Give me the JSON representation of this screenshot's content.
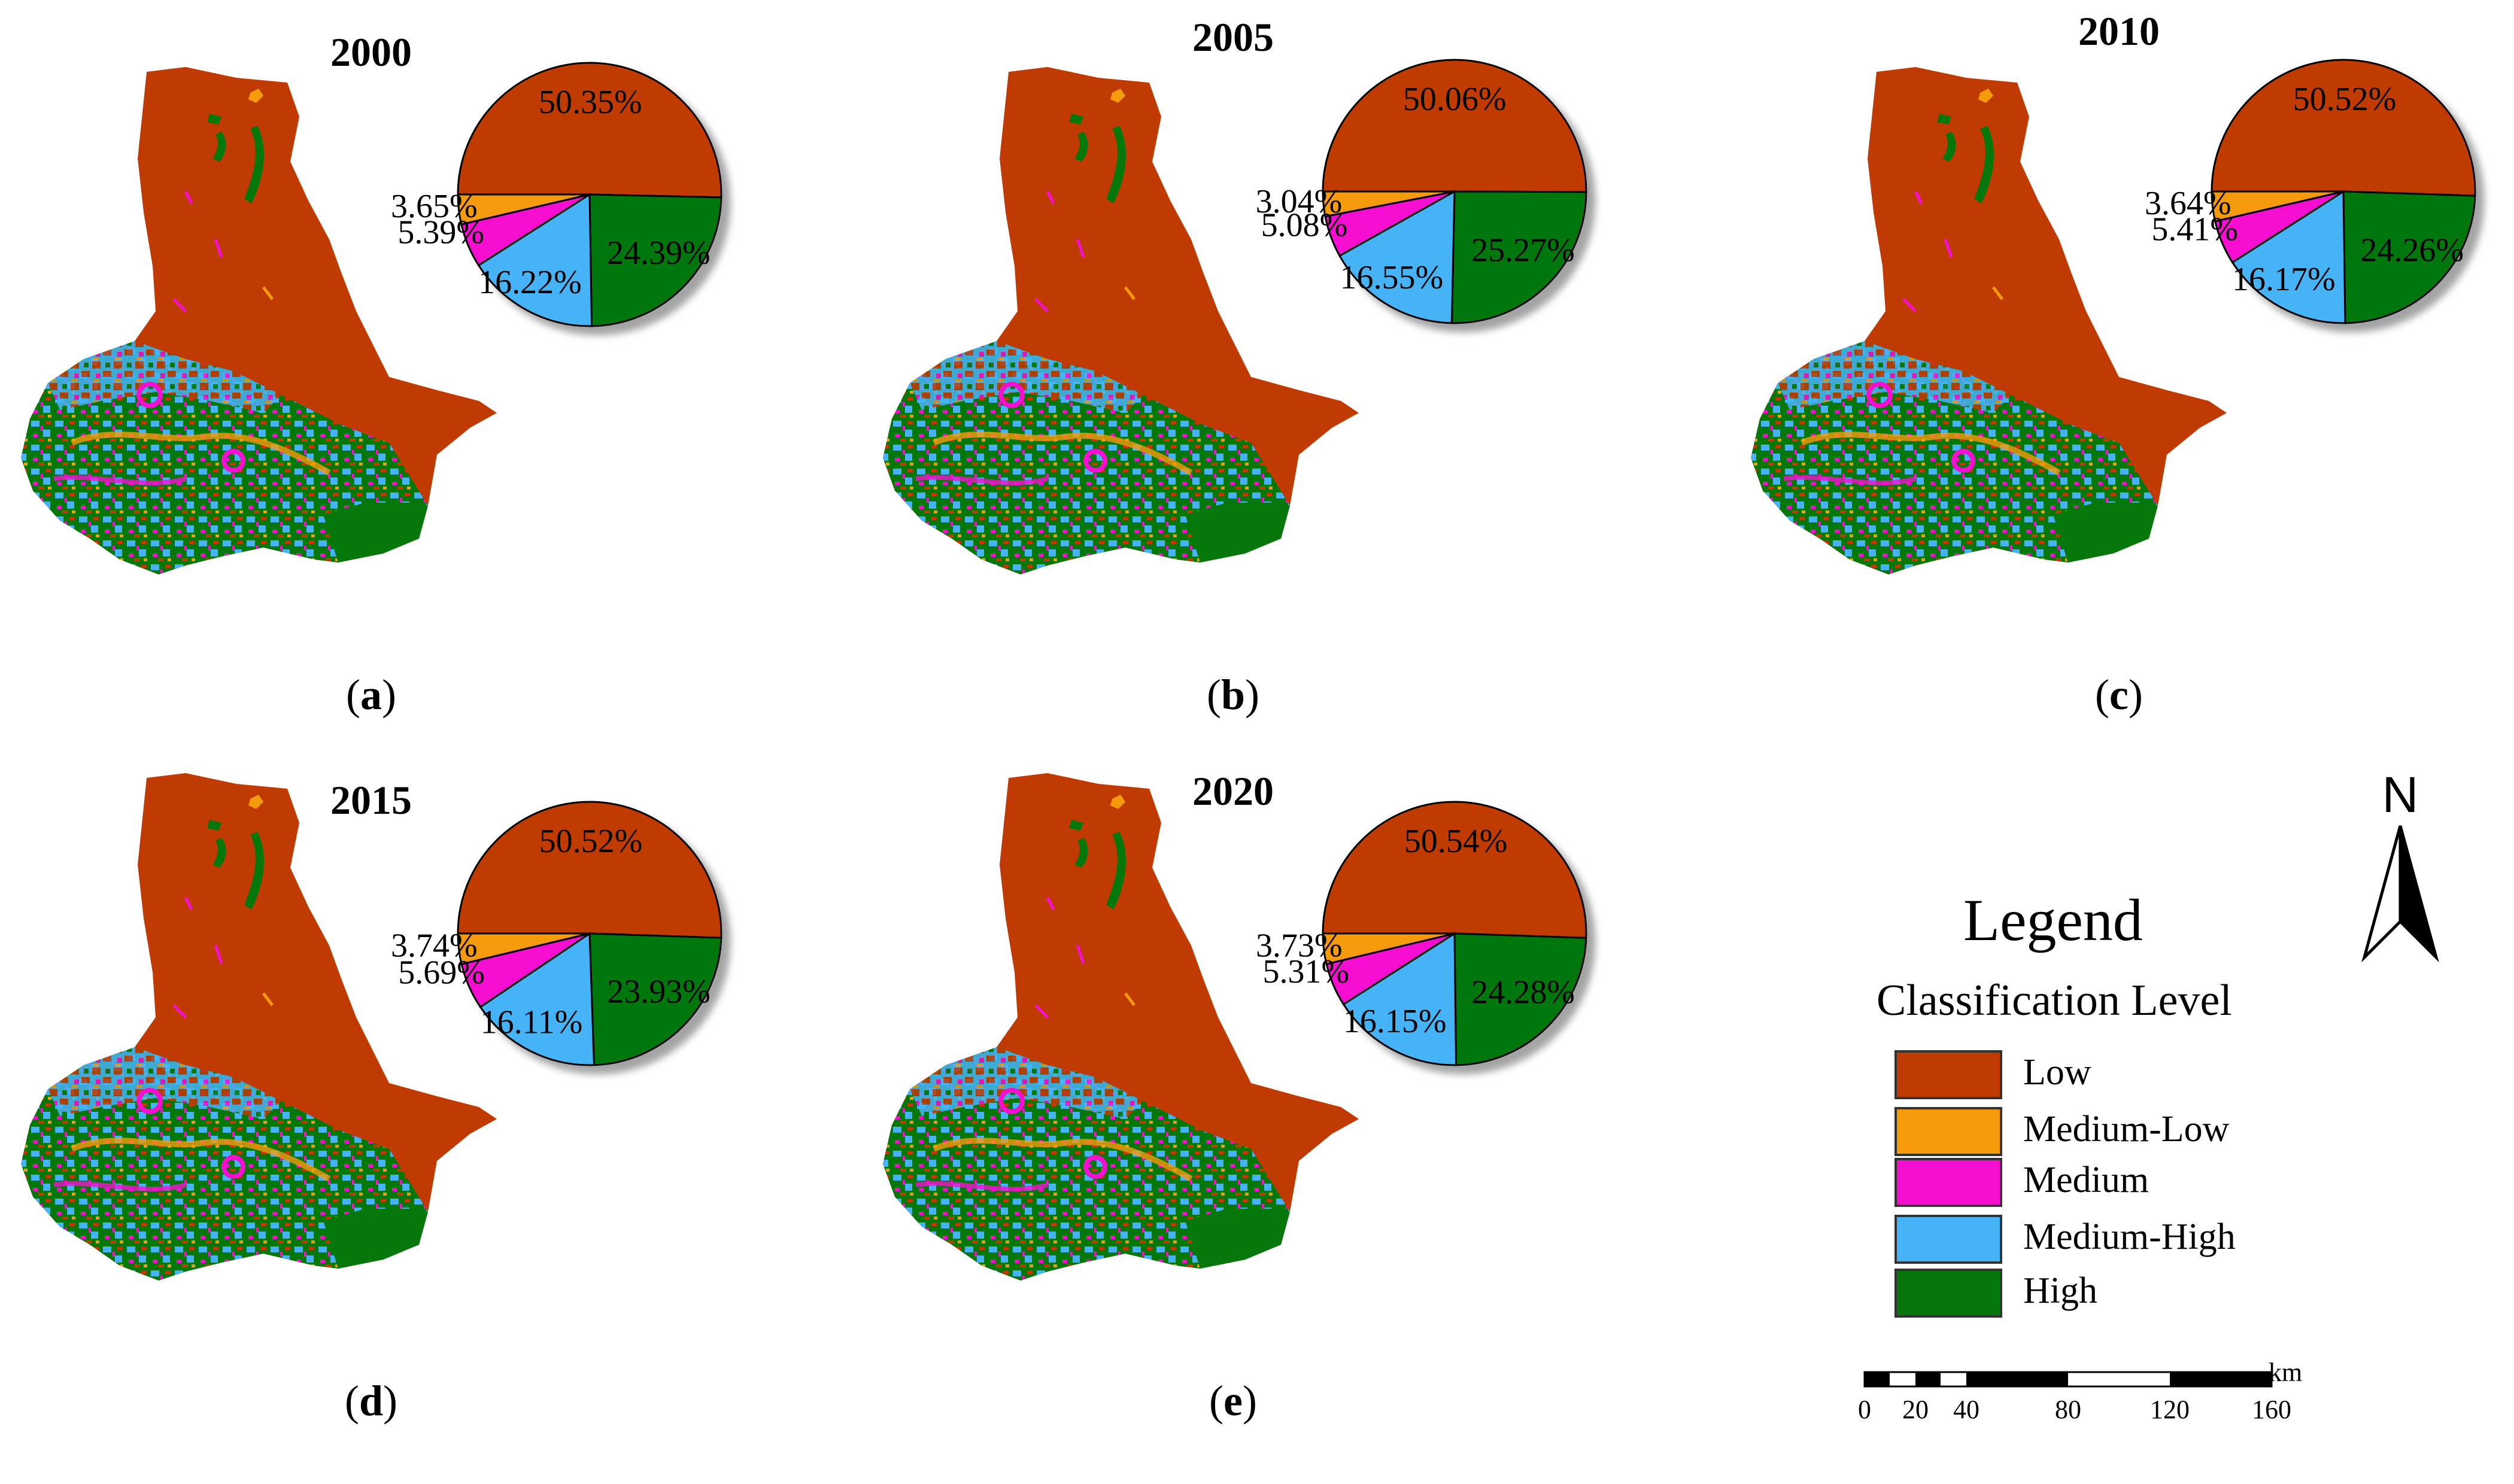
{
  "colors": {
    "low": "#c03a03",
    "medium_low": "#f59a0b",
    "medium": "#f510d0",
    "medium_high": "#45b3f5",
    "high": "#06770b"
  },
  "panels": [
    {
      "label_letter": "a",
      "year": "2000",
      "pie": [
        {
          "level": "Low",
          "value": 50.35,
          "label": "50.35%"
        },
        {
          "level": "High",
          "value": 24.39,
          "label": "24.39%"
        },
        {
          "level": "Medium-High",
          "value": 16.22,
          "label": "16.22%"
        },
        {
          "level": "Medium",
          "value": 5.39,
          "label": "5.39%"
        },
        {
          "level": "Medium-Low",
          "value": 3.65,
          "label": "3.65%"
        }
      ]
    },
    {
      "label_letter": "b",
      "year": "2005",
      "pie": [
        {
          "level": "Low",
          "value": 50.06,
          "label": "50.06%"
        },
        {
          "level": "High",
          "value": 25.27,
          "label": "25.27%"
        },
        {
          "level": "Medium-High",
          "value": 16.55,
          "label": "16.55%"
        },
        {
          "level": "Medium",
          "value": 5.08,
          "label": "5.08%"
        },
        {
          "level": "Medium-Low",
          "value": 3.04,
          "label": "3.04%"
        }
      ]
    },
    {
      "label_letter": "c",
      "year": "2010",
      "pie": [
        {
          "level": "Low",
          "value": 50.52,
          "label": "50.52%"
        },
        {
          "level": "High",
          "value": 24.26,
          "label": "24.26%"
        },
        {
          "level": "Medium-High",
          "value": 16.17,
          "label": "16.17%"
        },
        {
          "level": "Medium",
          "value": 5.41,
          "label": "5.41%"
        },
        {
          "level": "Medium-Low",
          "value": 3.64,
          "label": "3.64%"
        }
      ]
    },
    {
      "label_letter": "d",
      "year": "2015",
      "pie": [
        {
          "level": "Low",
          "value": 50.52,
          "label": "50.52%"
        },
        {
          "level": "High",
          "value": 23.93,
          "label": "23.93%"
        },
        {
          "level": "Medium-High",
          "value": 16.11,
          "label": "16.11%"
        },
        {
          "level": "Medium",
          "value": 5.69,
          "label": "5.69%"
        },
        {
          "level": "Medium-Low",
          "value": 3.74,
          "label": "3.74%"
        }
      ]
    },
    {
      "label_letter": "e",
      "year": "2020",
      "pie": [
        {
          "level": "Low",
          "value": 50.54,
          "label": "50.54%"
        },
        {
          "level": "High",
          "value": 24.28,
          "label": "24.28%"
        },
        {
          "level": "Medium-High",
          "value": 16.15,
          "label": "16.15%"
        },
        {
          "level": "Medium",
          "value": 5.31,
          "label": "5.31%"
        },
        {
          "level": "Medium-Low",
          "value": 3.73,
          "label": "3.73%"
        }
      ]
    }
  ],
  "legend": {
    "title": "Legend",
    "subtitle": "Classification Level",
    "items": [
      {
        "label": "Low",
        "color": "#c03a03"
      },
      {
        "label": "Medium-Low",
        "color": "#f59a0b"
      },
      {
        "label": "Medium",
        "color": "#f510d0"
      },
      {
        "label": "Medium-High",
        "color": "#45b3f5"
      },
      {
        "label": "High",
        "color": "#06770b"
      }
    ]
  },
  "north_arrow": {
    "letter": "N"
  },
  "scale_bar": {
    "unit": "km",
    "ticks": [
      "0",
      "20",
      "40",
      "80",
      "120",
      "160"
    ],
    "tick_values": [
      0,
      20,
      40,
      80,
      120,
      160
    ]
  }
}
